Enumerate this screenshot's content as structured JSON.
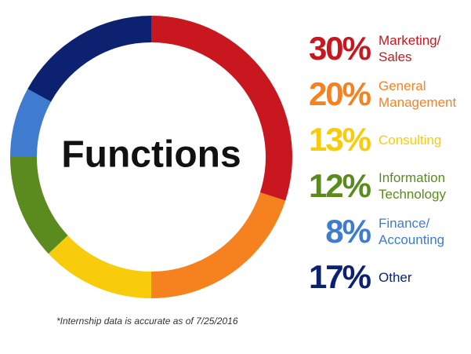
{
  "chart_data": {
    "type": "pie",
    "center_label": "Functions",
    "categories": [
      "Marketing/\nSales",
      "General\nManagement",
      "Consulting",
      "Information\nTechnology",
      "Finance/\nAccounting",
      "Other"
    ],
    "values": [
      30,
      20,
      13,
      12,
      8,
      17
    ],
    "value_labels": [
      "30%",
      "20%",
      "13%",
      "12%",
      "8%",
      "17%"
    ],
    "colors": [
      "#c8171f",
      "#f5821f",
      "#f8cc0a",
      "#5b8a1f",
      "#3f7ccf",
      "#0c2270"
    ],
    "footnote": "*Internship data is accurate as of 7/25/2016"
  }
}
